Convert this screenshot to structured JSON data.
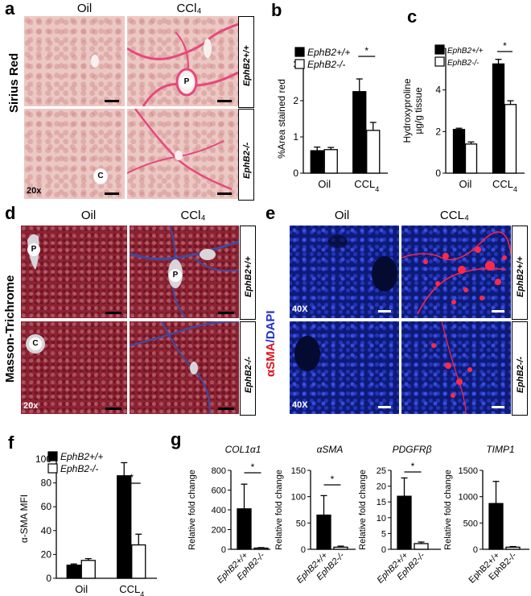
{
  "panels": {
    "a": {
      "label": "a",
      "col_titles": [
        "Oil",
        "CCl₄"
      ],
      "row_title": "Sirius Red",
      "row_genotypes": [
        "EphB2+/+",
        "EphB2-/-"
      ],
      "magnification": "20x",
      "tissue_labels": [
        "P",
        "C"
      ],
      "colors": {
        "tissue": "#ecc8c4",
        "fibrosis": "#e6487c"
      }
    },
    "d": {
      "label": "d",
      "col_titles": [
        "Oil",
        "CCl₄"
      ],
      "row_title": "Masson-Trichrome",
      "row_genotypes": [
        "EphB2+/+",
        "EphB2-/-"
      ],
      "magnification": "20x",
      "tissue_labels": [
        "P",
        "P",
        "C"
      ],
      "colors": {
        "tissue": "#8e2232",
        "fibrosis": "#3f4aa0"
      }
    },
    "e": {
      "label": "e",
      "col_titles": [
        "Oil",
        "CCL₄"
      ],
      "row_title_red": "αSMA",
      "row_title_blue": "/DAPI",
      "row_genotypes": [
        "EphB2+/+",
        "EphB2-/-"
      ],
      "magnification": "40X",
      "colors": {
        "nuclei": "#2a3ce0",
        "sma": "#ff2244"
      }
    },
    "b": {
      "label": "b"
    },
    "c": {
      "label": "c"
    },
    "f": {
      "label": "f"
    },
    "g": {
      "label": "g"
    }
  },
  "chart_data": [
    {
      "id": "b",
      "type": "bar",
      "categories": [
        "Oil",
        "CCL₄"
      ],
      "ylabel": "%Area stained red",
      "ylim": [
        0,
        3
      ],
      "yticks": [
        "0",
        "1",
        "2",
        "3"
      ],
      "legend": [
        "EphB2+/+",
        "EphB2-/-"
      ],
      "significance": "*",
      "series": [
        {
          "name": "EphB2+/+",
          "values": [
            0.62,
            2.25
          ],
          "errors": [
            0.1,
            0.35
          ]
        },
        {
          "name": "EphB2-/-",
          "values": [
            0.65,
            1.18
          ],
          "errors": [
            0.06,
            0.22
          ]
        }
      ]
    },
    {
      "id": "c",
      "type": "bar",
      "categories": [
        "Oil",
        "CCL₄"
      ],
      "ylabel": "Hydroxyproline µg/g tissue",
      "ylim": [
        0,
        6
      ],
      "yticks": [
        "0",
        "2",
        "4",
        "6"
      ],
      "legend": [
        "EphB2+/+",
        "EphB2-/-"
      ],
      "significance": "*",
      "series": [
        {
          "name": "EphB2+/+",
          "values": [
            2.1,
            5.25
          ],
          "errors": [
            0.06,
            0.22
          ]
        },
        {
          "name": "EphB2-/-",
          "values": [
            1.4,
            3.3
          ],
          "errors": [
            0.1,
            0.18
          ]
        }
      ]
    },
    {
      "id": "f",
      "type": "bar",
      "categories": [
        "Oil",
        "CCL₄"
      ],
      "ylabel": "α-SMA MFI",
      "ylim": [
        0,
        100
      ],
      "yticks": [
        "0",
        "20",
        "40",
        "60",
        "80",
        "100"
      ],
      "legend": [
        "EphB2+/+",
        "EphB2-/-"
      ],
      "significance": "*",
      "series": [
        {
          "name": "EphB2+/+",
          "values": [
            11,
            86
          ],
          "errors": [
            1,
            11
          ]
        },
        {
          "name": "EphB2-/-",
          "values": [
            15,
            28
          ],
          "errors": [
            1.5,
            9
          ]
        }
      ]
    },
    {
      "id": "g1",
      "type": "bar",
      "title": "COL1α1",
      "categories": [
        "EphB2+/+",
        "EphB2-/-"
      ],
      "ylabel": "Relative fold change",
      "ylim": [
        0,
        800
      ],
      "yticks": [
        "0",
        "200",
        "400",
        "600",
        "800"
      ],
      "significance": "*",
      "values": [
        410,
        12
      ],
      "errors": [
        250,
        5
      ]
    },
    {
      "id": "g2",
      "type": "bar",
      "title": "αSMA",
      "categories": [
        "EphB2+/+",
        "EphB2-/-"
      ],
      "ylabel": "Relative fold change",
      "ylim": [
        0,
        150
      ],
      "yticks": [
        "0",
        "50",
        "100",
        "150"
      ],
      "significance": "*",
      "values": [
        65,
        4
      ],
      "errors": [
        37,
        2
      ]
    },
    {
      "id": "g3",
      "type": "bar",
      "title": "PDGFRβ",
      "categories": [
        "EphB2+/+",
        "EphB2-/-"
      ],
      "ylabel": "Relative fold change",
      "ylim": [
        0,
        25
      ],
      "yticks": [
        "0",
        "5",
        "10",
        "15",
        "20",
        "25"
      ],
      "significance": "*",
      "values": [
        16.8,
        1.8
      ],
      "errors": [
        5.8,
        0.5
      ]
    },
    {
      "id": "g4",
      "type": "bar",
      "title": "TIMP1",
      "categories": [
        "EphB2+/+",
        "EphB2-/-"
      ],
      "ylabel": "Relative fold change",
      "ylim": [
        0,
        1500
      ],
      "yticks": [
        "0",
        "500",
        "1000",
        "1500"
      ],
      "values": [
        870,
        40
      ],
      "errors": [
        420,
        12
      ]
    }
  ]
}
